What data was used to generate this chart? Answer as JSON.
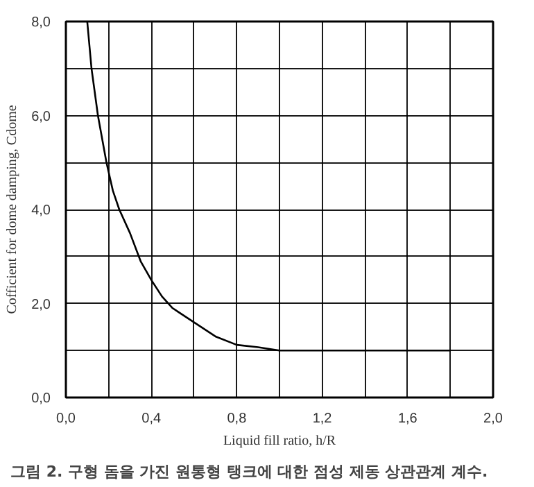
{
  "chart_data": {
    "type": "line",
    "xlabel": "Liquid fill ratio, h/R",
    "ylabel": "Cofficient for dome damping, Cdome",
    "annotations": [
      "그림 2. 구형 돔을 가진 원통형 탱크에 대한 점성 제동 상관관계 계수."
    ],
    "x": [
      0.1,
      0.12,
      0.15,
      0.19,
      0.22,
      0.25,
      0.3,
      0.35,
      0.4,
      0.45,
      0.5,
      0.6,
      0.7,
      0.8,
      0.9,
      1.0,
      1.4,
      1.8
    ],
    "series": [
      {
        "color": "#000000",
        "values": [
          8.0,
          7.0,
          6.0,
          5.0,
          4.4,
          4.0,
          3.5,
          2.9,
          2.5,
          2.15,
          1.9,
          1.6,
          1.3,
          1.12,
          1.07,
          1.0,
          1.0,
          1.0
        ]
      }
    ],
    "xlim": [
      0,
      2
    ],
    "ylim": [
      0,
      8
    ],
    "xticks": [
      {
        "value": 0,
        "label": "0,0"
      },
      {
        "value": 0.2,
        "label": null
      },
      {
        "value": 0.4,
        "label": "0,4"
      },
      {
        "value": 0.6,
        "label": null
      },
      {
        "value": 0.8,
        "label": "0,8"
      },
      {
        "value": 1.0,
        "label": null
      },
      {
        "value": 1.2,
        "label": "1,2"
      },
      {
        "value": 1.4,
        "label": null
      },
      {
        "value": 1.6,
        "label": "1,6"
      },
      {
        "value": 1.8,
        "label": null
      },
      {
        "value": 2.0,
        "label": "2,0"
      }
    ],
    "yticks": [
      {
        "value": 0,
        "label": "0,0"
      },
      {
        "value": 1,
        "label": null
      },
      {
        "value": 2,
        "label": "2,0"
      },
      {
        "value": 3,
        "label": null
      },
      {
        "value": 4,
        "label": "4,0"
      },
      {
        "value": 5,
        "label": null
      },
      {
        "value": 6,
        "label": "6,0"
      },
      {
        "value": 7,
        "label": null
      },
      {
        "value": 8,
        "label": "8,0"
      }
    ],
    "grid": true,
    "marker": "none",
    "line_style": "solid"
  }
}
